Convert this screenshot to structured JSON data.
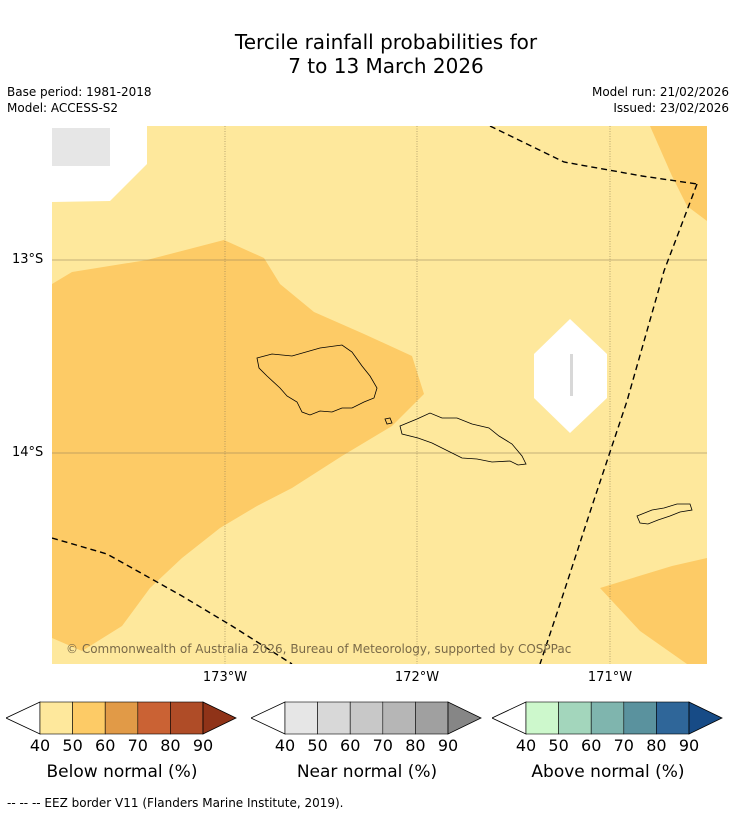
{
  "title_line1": "Tercile rainfall probabilities for",
  "title_line2": "7 to 13 March 2026",
  "base_period": "Base period: 1981-2018",
  "model": "Model: ACCESS-S2",
  "model_run": "Model run: 21/02/2026",
  "issued": "Issued: 23/02/2026",
  "lat_labels": [
    "13°S",
    "14°S"
  ],
  "lon_labels": [
    "173°W",
    "172°W",
    "171°W"
  ],
  "copyright": "© Commonwealth of Australia 2026, Bureau of Meteorology, supported by COSPPac",
  "colorbars": [
    {
      "label": "Below normal (%)",
      "ticks": [
        "40",
        "50",
        "60",
        "70",
        "80",
        "90"
      ],
      "colors": [
        "#fee89c",
        "#fdcb66",
        "#e19a47",
        "#ca6234",
        "#af4c27",
        "#8f3318"
      ]
    },
    {
      "label": "Near normal (%)",
      "ticks": [
        "40",
        "50",
        "60",
        "70",
        "80",
        "90"
      ],
      "colors": [
        "#e6e6e6",
        "#d8d8d8",
        "#c8c8c8",
        "#b6b6b6",
        "#a0a0a0",
        "#868686"
      ]
    },
    {
      "label": "Above normal (%)",
      "ticks": [
        "40",
        "50",
        "60",
        "70",
        "80",
        "90"
      ],
      "colors": [
        "#cdf8cc",
        "#a3d6bc",
        "#7fb5ae",
        "#5a929e",
        "#2f6699",
        "#174b86"
      ]
    }
  ],
  "footnote": "--  --  -- EEZ border V11 (Flanders Marine Institute, 2019).",
  "colors": {
    "below_40": "#fee89c",
    "below_50": "#fdcb66",
    "near_40": "#e6e6e6"
  }
}
